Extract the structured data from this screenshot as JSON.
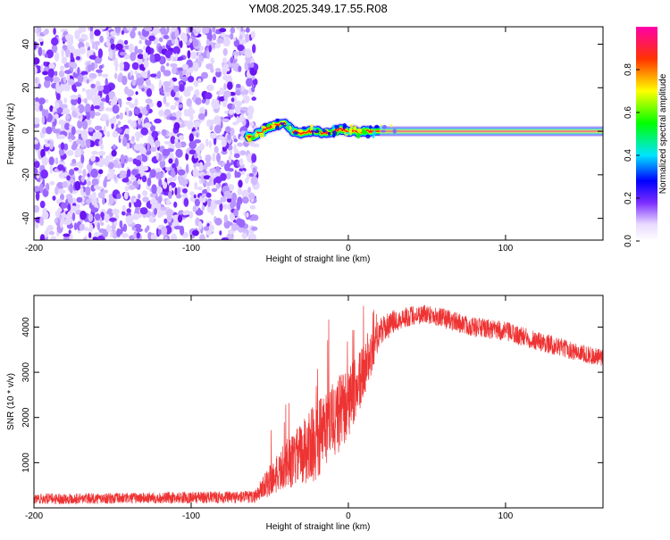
{
  "title": "YM08.2025.349.17.55.R08",
  "chart_data": [
    {
      "type": "heatmap",
      "xlabel": "Height of straight line (km)",
      "ylabel": "Frequency (Hz)",
      "xlim": [
        -200,
        162
      ],
      "ylim": [
        -50,
        48
      ],
      "xticks": [
        -200,
        -100,
        0,
        100
      ],
      "yticks": [
        -40,
        -20,
        0,
        20,
        40
      ],
      "noise_region_x": [
        -200,
        -62
      ],
      "ridge": {
        "x": [
          -65,
          -60,
          -55,
          -50,
          -45,
          -40,
          -35,
          -30,
          -25,
          -20,
          -15,
          -10,
          -5,
          0,
          5,
          10,
          20,
          40,
          80,
          120,
          162
        ],
        "freq": [
          -3,
          -2,
          0,
          2,
          3,
          4,
          0,
          -1,
          0,
          0,
          -1,
          0,
          1,
          0,
          0,
          0,
          0,
          0,
          0,
          0,
          0
        ]
      },
      "colorbar": {
        "label": "Normalized spectral amplitude",
        "range": [
          0,
          1
        ],
        "ticks": [
          "0.0",
          "0.2",
          "0.4",
          "0.6",
          "0.8"
        ]
      }
    },
    {
      "type": "line",
      "xlabel": "Height of straight line (km)",
      "ylabel": "SNR (10 * v/v)",
      "xlim": [
        -200,
        162
      ],
      "ylim": [
        0,
        4700
      ],
      "xticks": [
        -200,
        -100,
        0,
        100
      ],
      "yticks": [
        1000,
        2000,
        3000,
        4000
      ],
      "series": [
        {
          "name": "SNR",
          "color": "#ee3333",
          "envelope": {
            "x": [
              -200,
              -150,
              -100,
              -60,
              -50,
              -40,
              -30,
              -20,
              -10,
              0,
              10,
              20,
              30,
              40,
              50,
              60,
              80,
              100,
              120,
              140,
              162
            ],
            "mean": [
              200,
              210,
              230,
              240,
              600,
              900,
              1200,
              1500,
              1900,
              2300,
              3000,
              3900,
              4150,
              4250,
              4300,
              4200,
              4000,
              3900,
              3700,
              3500,
              3300
            ],
            "spread": [
              120,
              120,
              130,
              140,
              350,
              500,
              700,
              900,
              900,
              800,
              600,
              300,
              250,
              220,
              220,
              220,
              220,
              220,
              220,
              200,
              200
            ]
          }
        }
      ]
    }
  ]
}
